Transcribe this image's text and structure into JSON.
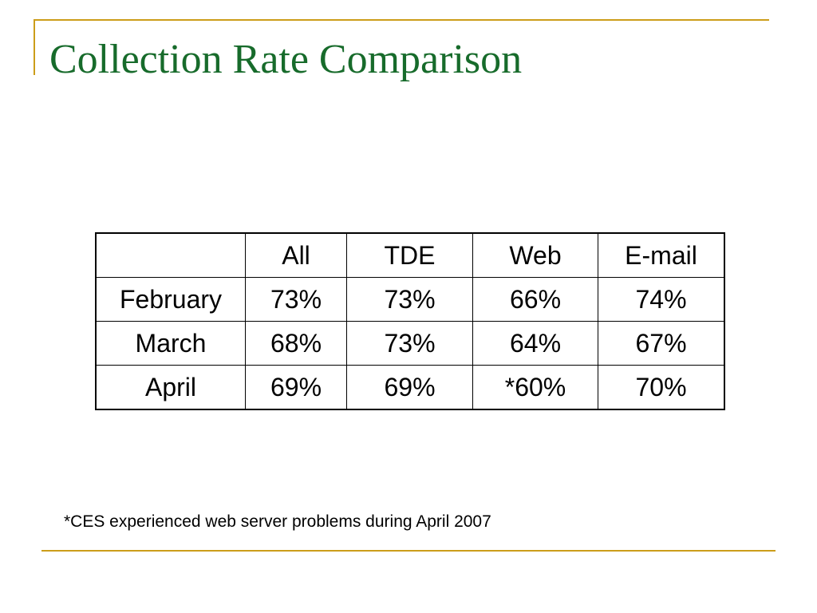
{
  "slide": {
    "title": "Collection Rate Comparison",
    "footnote": "*CES experienced web server problems during April 2007",
    "accent_color": "#cc9d1a",
    "title_color": "#176b2b"
  },
  "table": {
    "columns": [
      "",
      "All",
      "TDE",
      "Web",
      "E-mail"
    ],
    "rows": [
      {
        "label": "February",
        "all": "73%",
        "tde": "73%",
        "web": "66%",
        "email": "74%"
      },
      {
        "label": "March",
        "all": "68%",
        "tde": "73%",
        "web": "64%",
        "email": "67%"
      },
      {
        "label": "April",
        "all": "69%",
        "tde": "69%",
        "web": "*60%",
        "email": "70%"
      }
    ]
  }
}
